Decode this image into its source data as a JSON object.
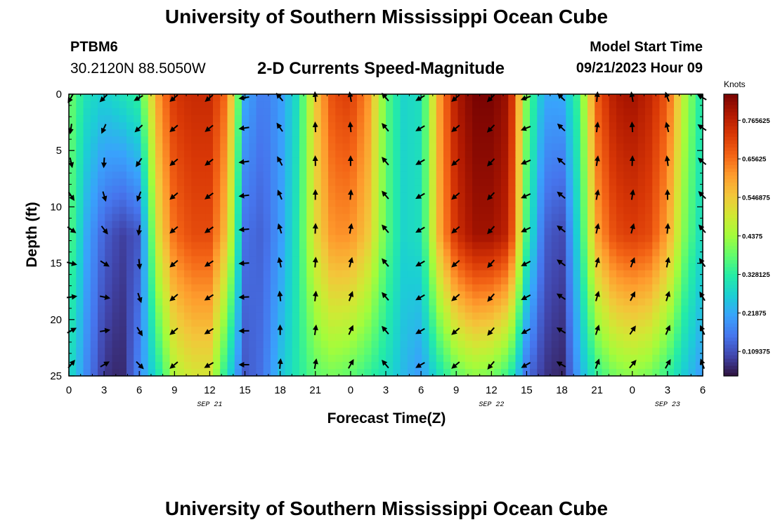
{
  "header": {
    "title": "University of Southern Mississippi Ocean Cube",
    "station": "PTBM6",
    "coordinates": "30.2120N  88.5050W",
    "subtitle": "2-D Currents Speed-Magnitude",
    "model_start_label": "Model Start Time",
    "model_start_value": "09/21/2023 Hour 09"
  },
  "footer": {
    "title": "University of Southern Mississippi Ocean Cube"
  },
  "chart_data": {
    "type": "heatmap",
    "title": "2-D Currents Speed-Magnitude",
    "xlabel": "Forecast Time(Z)",
    "ylabel": "Depth (ft)",
    "x_range_hours": [
      0,
      54
    ],
    "x_ticks": [
      {
        "hour": 0,
        "label": "0"
      },
      {
        "hour": 3,
        "label": "3"
      },
      {
        "hour": 6,
        "label": "6"
      },
      {
        "hour": 9,
        "label": "9"
      },
      {
        "hour": 12,
        "label": "12"
      },
      {
        "hour": 15,
        "label": "15"
      },
      {
        "hour": 18,
        "label": "18"
      },
      {
        "hour": 21,
        "label": "21"
      },
      {
        "hour": 24,
        "label": "0"
      },
      {
        "hour": 27,
        "label": "3"
      },
      {
        "hour": 30,
        "label": "6"
      },
      {
        "hour": 33,
        "label": "9"
      },
      {
        "hour": 36,
        "label": "12"
      },
      {
        "hour": 39,
        "label": "15"
      },
      {
        "hour": 42,
        "label": "18"
      },
      {
        "hour": 45,
        "label": "21"
      },
      {
        "hour": 48,
        "label": "0"
      },
      {
        "hour": 51,
        "label": "3"
      },
      {
        "hour": 54,
        "label": "6"
      }
    ],
    "date_labels": [
      {
        "hour": 12,
        "label": "SEP 21"
      },
      {
        "hour": 36,
        "label": "SEP 22"
      },
      {
        "hour": 51,
        "label": "SEP 23"
      }
    ],
    "y_range_ft": [
      0,
      25
    ],
    "y_ticks": [
      0,
      5,
      10,
      15,
      20,
      25
    ],
    "colorbar": {
      "units": "Knots",
      "range": [
        0.04,
        0.84
      ],
      "ticks": [
        "0.109375",
        "0.21875",
        "0.328125",
        "0.4375",
        "0.546875",
        "0.65625",
        "0.765625"
      ],
      "colors": [
        "#30123b",
        "#4145ab",
        "#4675ed",
        "#39a2fc",
        "#1bcfd4",
        "#24eca6",
        "#61fc6c",
        "#a4fc3b",
        "#d1e834",
        "#f3c63a",
        "#fe9b2d",
        "#f36315",
        "#d93806",
        "#b11901",
        "#7a0402"
      ]
    },
    "speed_profile": {
      "hours": [
        0,
        1.5,
        3,
        4.5,
        6,
        7.5,
        9,
        10.5,
        12,
        13.5,
        15,
        16.5,
        18,
        19.5,
        21,
        22.5,
        24,
        25.5,
        27,
        28.5,
        30,
        31.5,
        33,
        34.5,
        36,
        37.5,
        39,
        40.5,
        42,
        43.5,
        45,
        46.5,
        48,
        49.5,
        51,
        52.5,
        54
      ],
      "surface": [
        0.4,
        0.3,
        0.27,
        0.3,
        0.34,
        0.6,
        0.73,
        0.75,
        0.75,
        0.65,
        0.22,
        0.16,
        0.2,
        0.3,
        0.55,
        0.7,
        0.72,
        0.62,
        0.38,
        0.28,
        0.3,
        0.6,
        0.78,
        0.84,
        0.84,
        0.8,
        0.4,
        0.22,
        0.22,
        0.36,
        0.68,
        0.78,
        0.8,
        0.76,
        0.68,
        0.45,
        0.3
      ],
      "mid": [
        0.38,
        0.22,
        0.13,
        0.09,
        0.12,
        0.5,
        0.66,
        0.7,
        0.7,
        0.55,
        0.15,
        0.13,
        0.2,
        0.32,
        0.52,
        0.62,
        0.62,
        0.55,
        0.38,
        0.28,
        0.3,
        0.58,
        0.74,
        0.8,
        0.8,
        0.76,
        0.35,
        0.13,
        0.1,
        0.3,
        0.6,
        0.7,
        0.72,
        0.7,
        0.6,
        0.4,
        0.28
      ],
      "bottom": [
        0.3,
        0.18,
        0.08,
        0.06,
        0.18,
        0.3,
        0.46,
        0.5,
        0.5,
        0.3,
        0.12,
        0.15,
        0.25,
        0.32,
        0.38,
        0.4,
        0.38,
        0.34,
        0.3,
        0.24,
        0.2,
        0.3,
        0.38,
        0.42,
        0.4,
        0.34,
        0.15,
        0.08,
        0.06,
        0.22,
        0.34,
        0.4,
        0.42,
        0.4,
        0.34,
        0.26,
        0.2
      ]
    },
    "vectors": {
      "hours": [
        0,
        3,
        6,
        9,
        12,
        15,
        18,
        21,
        24,
        27,
        30,
        33,
        36,
        39,
        42,
        45,
        48,
        51,
        54
      ],
      "depths": [
        0,
        3,
        6,
        9,
        12,
        15,
        18,
        21,
        24
      ],
      "surface_direction_deg": [
        210,
        225,
        240,
        230,
        230,
        260,
        320,
        355,
        350,
        320,
        240,
        230,
        225,
        250,
        315,
        5,
        350,
        340,
        300
      ],
      "bottom_direction_deg": [
        40,
        60,
        135,
        230,
        240,
        270,
        5,
        10,
        30,
        320,
        240,
        230,
        220,
        240,
        300,
        20,
        40,
        30,
        340
      ]
    }
  }
}
